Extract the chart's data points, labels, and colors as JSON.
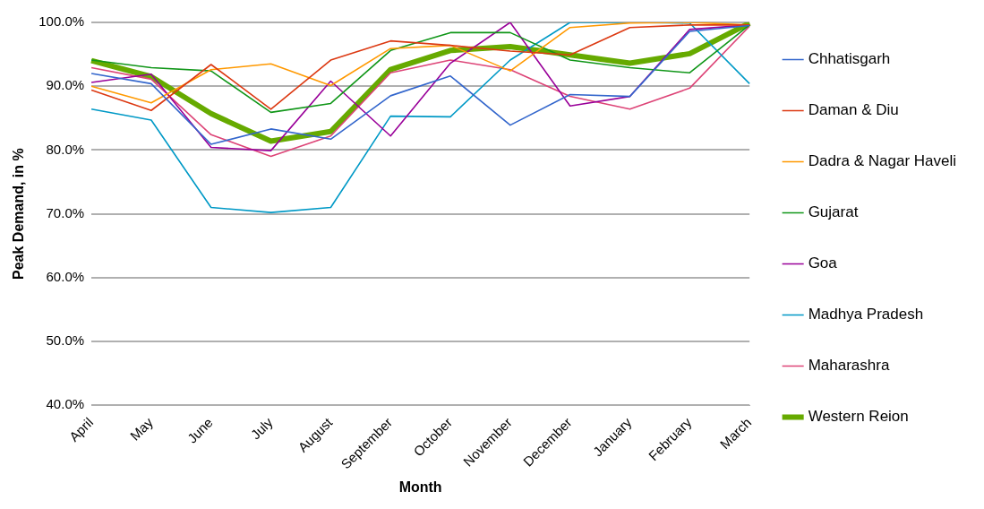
{
  "chart_data": {
    "type": "line",
    "xlabel": "Month",
    "ylabel": "Peak Demand, in %",
    "categories": [
      "April",
      "May",
      "June",
      "July",
      "August",
      "September",
      "October",
      "November",
      "December",
      "January",
      "February",
      "March"
    ],
    "series": [
      {
        "name": "Chhatisgarh",
        "color": "#3366cc",
        "values": [
          92.0,
          90.4,
          80.9,
          83.3,
          81.7,
          88.5,
          91.6,
          83.9,
          88.7,
          88.4,
          98.6,
          99.5
        ]
      },
      {
        "name": "Daman & Diu",
        "color": "#dc3912",
        "values": [
          89.4,
          86.2,
          93.4,
          86.4,
          94.1,
          97.1,
          96.4,
          95.5,
          94.9,
          99.2,
          99.6,
          99.6
        ]
      },
      {
        "name": "Dadra & Nagar Haveli",
        "color": "#ff9900",
        "values": [
          90.0,
          87.4,
          92.6,
          93.5,
          90.1,
          95.9,
          96.4,
          92.4,
          99.2,
          99.9,
          100,
          99.6
        ]
      },
      {
        "name": "Gujarat",
        "color": "#109618",
        "values": [
          94.1,
          92.9,
          92.4,
          85.9,
          87.3,
          95.6,
          98.4,
          98.4,
          94.1,
          92.9,
          92.1,
          99.6
        ]
      },
      {
        "name": "Goa",
        "color": "#990099",
        "values": [
          90.6,
          91.9,
          80.4,
          79.9,
          90.8,
          82.2,
          93.6,
          100,
          86.9,
          88.4,
          98.9,
          99.6
        ]
      },
      {
        "name": "Madhya Pradesh",
        "color": "#0099c6",
        "values": [
          86.4,
          84.7,
          71.0,
          70.2,
          71.0,
          85.3,
          85.2,
          94.1,
          100,
          100,
          99.9,
          90.4
        ]
      },
      {
        "name": "Maharashra",
        "color": "#dd4477",
        "values": [
          92.9,
          91.1,
          82.4,
          79.0,
          82.2,
          92.1,
          94.1,
          92.6,
          88.4,
          86.4,
          89.7,
          99.4
        ]
      },
      {
        "name": "Western Reion",
        "color": "#66aa00",
        "values": [
          94.0,
          91.5,
          85.7,
          81.4,
          82.9,
          92.6,
          95.6,
          96.2,
          94.9,
          93.6,
          95.1,
          99.9
        ]
      }
    ],
    "ylim": [
      40,
      100
    ],
    "yticks": [
      {
        "value": 40,
        "label": "40.0%"
      },
      {
        "value": 50,
        "label": "50.0%"
      },
      {
        "value": 60,
        "label": "60.0%"
      },
      {
        "value": 70,
        "label": "70.0%"
      },
      {
        "value": 80,
        "label": "80.0%"
      },
      {
        "value": 90,
        "label": "90.0%"
      },
      {
        "value": 100,
        "label": "100.0%"
      }
    ],
    "grid": "y",
    "legend": "right",
    "marker": "none",
    "line_style": "solid"
  }
}
